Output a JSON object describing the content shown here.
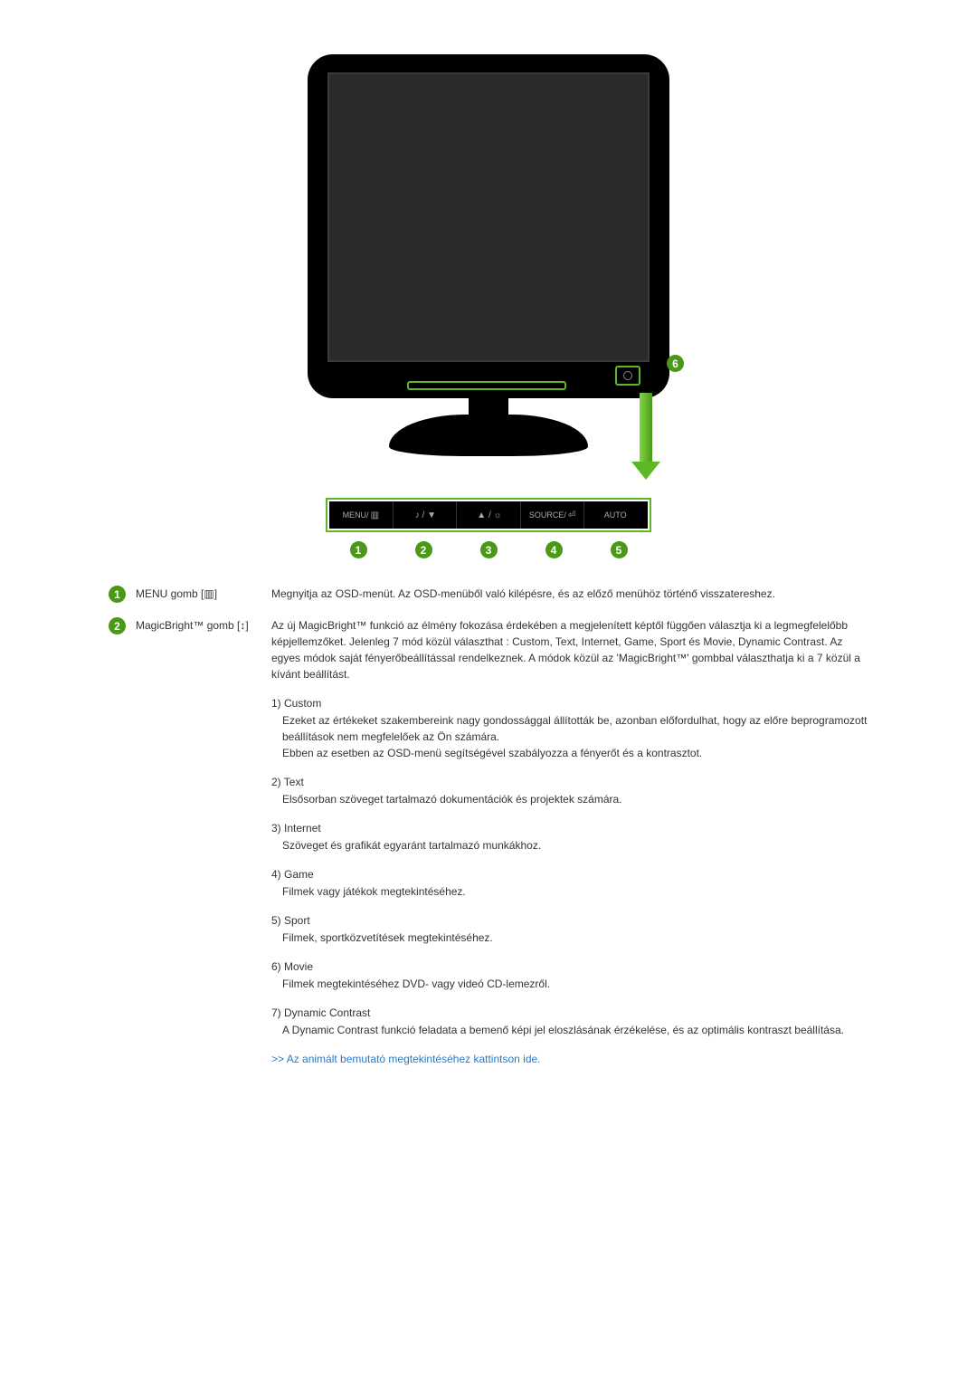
{
  "colors": {
    "badge_bg": "#4a9818",
    "badge_fg": "#ffffff",
    "highlight_border": "#5cb823",
    "link": "#2b78c4",
    "monitor_black": "#000000",
    "screen_dark": "#2a2a2a",
    "button_text": "#aaaaaa"
  },
  "monitor": {
    "button_bar": [
      {
        "label": "MENU/",
        "icon": "▥"
      },
      {
        "label": "",
        "icon": "♪ / ▼"
      },
      {
        "label": "",
        "icon": "▲ / ☼"
      },
      {
        "label": "SOURCE/",
        "icon": "⏎"
      },
      {
        "label": "AUTO",
        "icon": ""
      }
    ],
    "numbers": [
      "1",
      "2",
      "3",
      "4",
      "5"
    ],
    "badge6": "6"
  },
  "rows": [
    {
      "num": "1",
      "label": "MENU gomb [▥]",
      "desc": "Megnyitja az OSD-menüt. Az OSD-menüből való kilépésre, és az előző menühöz történő visszatereshez."
    },
    {
      "num": "2",
      "label": "MagicBright™ gomb [↕]",
      "desc": "Az új MagicBright™ funkció az élmény fokozása érdekében a megjelenített képtől függően választja ki a legmegfelelőbb képjellemzőket. Jelenleg 7 mód közül választhat : Custom, Text, Internet, Game, Sport és Movie, Dynamic Contrast. Az egyes módok saját fényerőbeállítással rendelkeznek. A módok közül az 'MagicBright™' gombbal választhatja ki a 7 közül a kívánt beállítást.",
      "modes": [
        {
          "n": "1",
          "title": "Custom",
          "lines": [
            "Ezeket az értékeket szakembereink nagy gondossággal állították be, azonban előfordulhat, hogy az előre beprogramozott beállítások nem megfelelőek az Ön számára.",
            "Ebben az esetben az OSD-menü segítségével szabályozza a fényerőt és a kontrasztot."
          ]
        },
        {
          "n": "2",
          "title": "Text",
          "lines": [
            "Elsősorban szöveget tartalmazó dokumentációk és projektek számára."
          ]
        },
        {
          "n": "3",
          "title": "Internet",
          "lines": [
            "Szöveget és grafikát egyaránt tartalmazó munkákhoz."
          ]
        },
        {
          "n": "4",
          "title": "Game",
          "lines": [
            "Filmek vagy játékok megtekintéséhez."
          ]
        },
        {
          "n": "5",
          "title": "Sport",
          "lines": [
            "Filmek, sportközvetítések megtekintéséhez."
          ]
        },
        {
          "n": "6",
          "title": "Movie",
          "lines": [
            "Filmek megtekintéséhez DVD- vagy videó CD-lemezről."
          ]
        },
        {
          "n": "7",
          "title": "Dynamic Contrast",
          "lines": [
            "A Dynamic Contrast funkció feladata a bemenő képi jel eloszlásának érzékelése, és az optimális kontraszt beállítása."
          ]
        }
      ],
      "link": ">> Az animált bemutató megtekintéséhez kattintson ide."
    }
  ]
}
